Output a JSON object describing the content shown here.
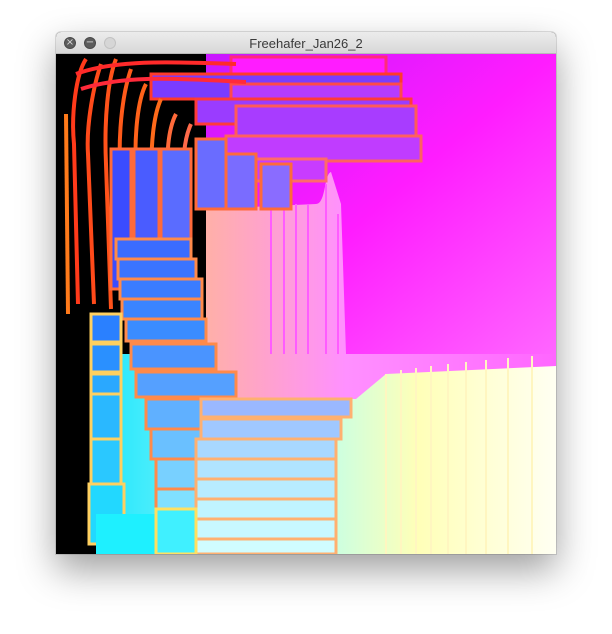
{
  "window": {
    "title": "Freehafer_Jan26_2",
    "buttons": {
      "close": "×",
      "minimize": "−",
      "zoom": ""
    }
  },
  "canvas": {
    "colors": {
      "background": "#000000",
      "red": "#ff2a1a",
      "orange": "#ff6a1a",
      "blue": "#4a5cff",
      "violet": "#a83cff",
      "magenta": "#ff14ff",
      "pink": "#ff7aff",
      "cyan": "#1ee6ff",
      "light-cyan": "#9be8ff",
      "yellow": "#ffe85a",
      "cream": "#fffff0"
    }
  }
}
